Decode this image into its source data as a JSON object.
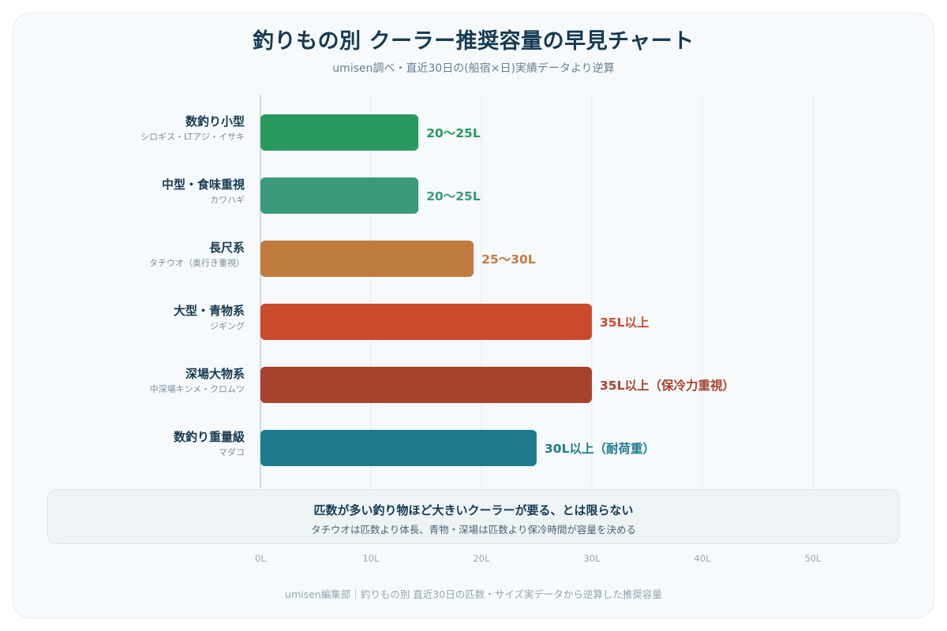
{
  "header": {
    "title": "釣りもの別 クーラー推奨容量の早見チャート",
    "subtitle": "umisen調べ・直近30日の(船宿×日)実績データより逆算"
  },
  "chart_data": {
    "type": "bar",
    "orientation": "horizontal",
    "title": "釣りもの別 クーラー推奨容量の早見チャート",
    "subtitle": "umisen調べ・直近30日の(船宿×日)実績データより逆算",
    "xlabel": "",
    "ylabel": "",
    "xlim": [
      0,
      50
    ],
    "x_ticks": [
      "0L",
      "10L",
      "20L",
      "30L",
      "40L",
      "50L"
    ],
    "grid": true,
    "categories": [
      {
        "name": "数釣り小型",
        "examples": "シロギス・LTアジ・イサキ",
        "value": 14.3,
        "label": "20〜25L",
        "color": "#2a9960"
      },
      {
        "name": "中型・食味重視",
        "examples": "カワハギ",
        "value": 14.3,
        "label": "20〜25L",
        "color": "#3a9a7c"
      },
      {
        "name": "長尺系",
        "examples": "タチウオ（奥行き重視）",
        "value": 19.3,
        "label": "25〜30L",
        "color": "#c07c3e"
      },
      {
        "name": "大型・青物系",
        "examples": "ジギング",
        "value": 30,
        "label": "35L以上",
        "color": "#cb4a2c"
      },
      {
        "name": "深場大物系",
        "examples": "中深場キンメ・クロムツ",
        "value": 30,
        "label": "35L以上（保冷力重視）",
        "color": "#a7432d"
      },
      {
        "name": "数釣り重量級",
        "examples": "マダコ",
        "value": 25,
        "label": "30L以上（耐荷重）",
        "color": "#1f7b8c"
      }
    ]
  },
  "callout": {
    "headline": "匹数が多い釣り物ほど大きいクーラーが要る、とは限らない",
    "body": "タチウオは匹数より体長、青物・深場は匹数より保冷時間が容量を決める"
  },
  "footer": {
    "text": "umisen編集部｜釣りもの別 直近30日の匹数・サイズ実データから逆算した推奨容量"
  }
}
